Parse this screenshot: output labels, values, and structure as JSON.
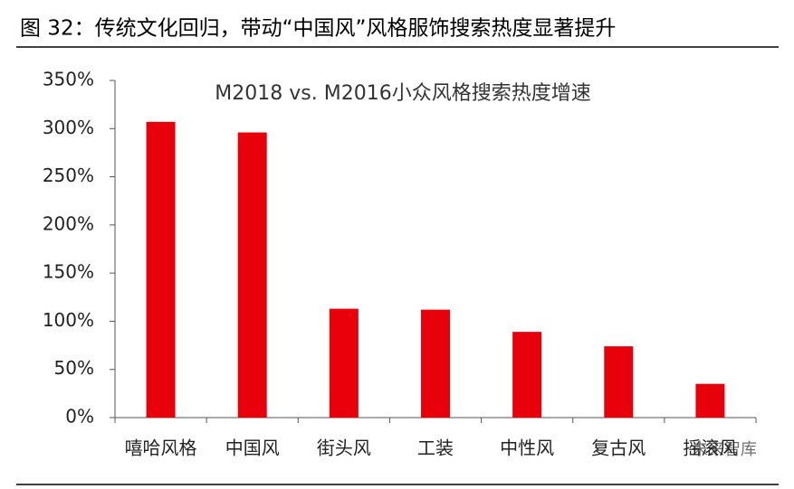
{
  "chart_data": {
    "type": "bar",
    "header": "图 32：传统文化回归，带动“中国风”风格服饰搜索热度显著提升",
    "title": "M2018 vs. M2016小众风格搜索热度增速",
    "categories": [
      "嘻哈风格",
      "中国风",
      "街头风",
      "工装",
      "中性风",
      "复古风",
      "摇滚风"
    ],
    "values": [
      307,
      296,
      113,
      112,
      89,
      74,
      35
    ],
    "color": "#e8000b",
    "ylim": [
      0,
      350
    ],
    "yticks": [
      {
        "value": 0,
        "label": "0%"
      },
      {
        "value": 50,
        "label": "50%"
      },
      {
        "value": 100,
        "label": "100%"
      },
      {
        "value": 150,
        "label": "150%"
      },
      {
        "value": 200,
        "label": "200%"
      },
      {
        "value": 250,
        "label": "250%"
      },
      {
        "value": 300,
        "label": "300%"
      },
      {
        "value": 350,
        "label": "350%"
      }
    ],
    "grid": false,
    "watermark": "未来智库"
  }
}
